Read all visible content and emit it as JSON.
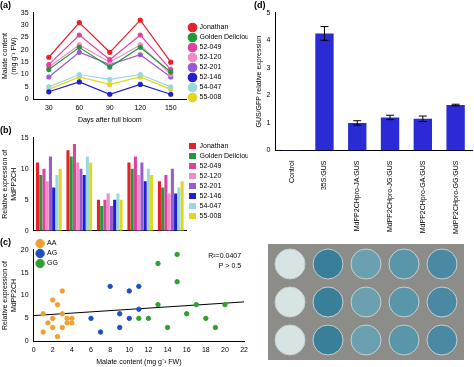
{
  "chart_data": [
    {
      "type": "line",
      "title": "(a)",
      "x": [
        30,
        60,
        90,
        120,
        150
      ],
      "xlim": [
        15,
        165
      ],
      "xticks": [
        30,
        60,
        90,
        120,
        150
      ],
      "ylim": [
        0,
        35
      ],
      "yticks": [
        0,
        5,
        10,
        15,
        20,
        25,
        30,
        35
      ],
      "x_label": "Days after full bloom",
      "y_label": [
        "Malate content",
        "(mg g⁻¹ FW)"
      ],
      "legend": "right",
      "marker": "circle",
      "grid": false,
      "series": [
        {
          "name": "Jonathan",
          "color": "#e8202a",
          "values": [
            17,
            31,
            19,
            32,
            15
          ]
        },
        {
          "name": "Golden Delicious",
          "color": "#1f9a3a",
          "values": [
            12,
            21,
            13,
            21,
            11
          ]
        },
        {
          "name": "52-049",
          "color": "#e040a0",
          "values": [
            14,
            26,
            16,
            26,
            12
          ]
        },
        {
          "name": "52-120",
          "color": "#f08cc8",
          "values": [
            13,
            22,
            15,
            22,
            10
          ]
        },
        {
          "name": "52-201",
          "color": "#9a5ad0",
          "values": [
            9,
            19,
            14,
            18,
            9
          ]
        },
        {
          "name": "52-146",
          "color": "#2020d0",
          "values": [
            3,
            7,
            2,
            6,
            2
          ]
        },
        {
          "name": "54-047",
          "color": "#9ad8e0",
          "values": [
            5,
            10,
            8,
            10,
            5
          ]
        },
        {
          "name": "55-008",
          "color": "#e0d820",
          "values": [
            4,
            9,
            6,
            9,
            4
          ]
        }
      ]
    },
    {
      "type": "bar",
      "title": "(b)",
      "categories": [
        null,
        null,
        null,
        null,
        null
      ],
      "tick_labels": "y",
      "grid": false,
      "ylim": [
        0,
        15
      ],
      "yticks": [
        0,
        5,
        10,
        15
      ],
      "y_label": [
        "Relative expression of",
        "MdPP2CH"
      ],
      "legend": "right",
      "series": [
        {
          "name": "Jonathan",
          "color": "#e8202a",
          "values": [
            11,
            13,
            5,
            11,
            8
          ]
        },
        {
          "name": "Golden Delicious",
          "color": "#1f9a3a",
          "values": [
            9,
            12,
            4,
            10,
            7
          ]
        },
        {
          "name": "52-049",
          "color": "#e040a0",
          "values": [
            10,
            14,
            5,
            12,
            9
          ]
        },
        {
          "name": "52-120",
          "color": "#f08cc8",
          "values": [
            8,
            11,
            6,
            9,
            6
          ]
        },
        {
          "name": "52-201",
          "color": "#9a5ad0",
          "values": [
            12,
            10,
            4,
            11,
            10
          ]
        },
        {
          "name": "52-146",
          "color": "#2020d0",
          "values": [
            7,
            9,
            5,
            8,
            6
          ]
        },
        {
          "name": "54-047",
          "color": "#9ad8e0",
          "values": [
            9,
            12,
            6,
            10,
            7
          ]
        },
        {
          "name": "55-008",
          "color": "#e0d820",
          "values": [
            10,
            11,
            5,
            9,
            8
          ]
        }
      ]
    },
    {
      "type": "scatter",
      "title": "(c)",
      "xlim": [
        0,
        22
      ],
      "xticks": [
        0,
        2,
        4,
        6,
        8,
        10,
        12,
        14,
        16,
        18,
        20,
        22
      ],
      "ylim": [
        0,
        20
      ],
      "yticks": [
        0,
        5,
        10,
        15,
        20
      ],
      "x_label": "Malate content (mg g⁻¹ FW)",
      "y_label": [
        "Relative expression of",
        "MdPP2CH"
      ],
      "legend": "upper left",
      "marker": "circle",
      "grid": false,
      "annotations": [
        "R²=0.0407",
        "P > 0.5"
      ],
      "trend_line": {
        "x": [
          0,
          22
        ],
        "y": [
          5.6,
          8.6
        ]
      },
      "series": [
        {
          "name": "AA",
          "color": "#f0a030",
          "x": [
            1,
            1.5,
            2,
            2,
            2.5,
            2,
            3,
            3,
            3.5,
            4,
            1,
            2.5,
            3,
            3.5,
            4
          ],
          "values": [
            6,
            4,
            3,
            5,
            8,
            9,
            6,
            3,
            4,
            5,
            2,
            1,
            11,
            5,
            4
          ]
        },
        {
          "name": "AG",
          "color": "#2050c0",
          "x": [
            6,
            7,
            8,
            9,
            10,
            10,
            11,
            11,
            9
          ],
          "values": [
            5,
            2,
            12,
            3,
            11,
            5,
            12,
            7,
            6
          ]
        },
        {
          "name": "GG",
          "color": "#30a030",
          "x": [
            12,
            13,
            13,
            15,
            14,
            16,
            18,
            19,
            20,
            15,
            11,
            17
          ],
          "values": [
            5,
            17,
            8,
            19,
            3,
            6,
            5,
            3,
            8,
            13,
            5,
            8
          ]
        }
      ]
    },
    {
      "type": "bar",
      "title": "(d)",
      "categories": [
        "Control",
        "35S:GUS",
        "MdPP2CHpro-JA:GUS",
        "MdPP2CHpro-JG:GUS",
        "MdPP2CHpro-GA:GUS",
        "MdPP2CHpro-GG:GUS"
      ],
      "values": [
        0.02,
        4.25,
        1.0,
        1.2,
        1.15,
        1.65
      ],
      "errors": [
        0,
        0.25,
        0.08,
        0.08,
        0.1,
        0.03
      ],
      "color": "#2b2bd6",
      "grid": false,
      "ylim": [
        0,
        5
      ],
      "yticks": [
        0,
        1,
        2,
        3,
        4,
        5
      ],
      "y_label": "GUS/GFP relative expression"
    }
  ]
}
